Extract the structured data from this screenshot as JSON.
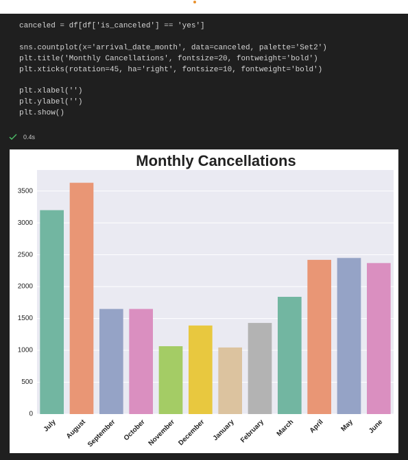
{
  "code": {
    "lines": [
      "canceled = df[df['is_canceled'] == 'yes']",
      "sns.countplot(x='arrival_date_month', data=canceled, palette='Set2')",
      "plt.title('Monthly Cancellations', fontsize=20, fontweight='bold')",
      "plt.xticks(rotation=45, ha='right', fontsize=10, fontweight='bold')",
      "plt.xlabel('')",
      "plt.ylabel('')",
      "plt.show()"
    ],
    "time": "0.4s"
  },
  "chart_data": {
    "type": "bar",
    "title": "Monthly Cancellations",
    "categories": [
      "July",
      "August",
      "September",
      "October",
      "November",
      "December",
      "January",
      "February",
      "March",
      "April",
      "May",
      "June"
    ],
    "values": [
      3200,
      3630,
      1650,
      1650,
      1065,
      1390,
      1045,
      1430,
      1840,
      2420,
      2450,
      2370
    ],
    "colors": [
      "#72b6a1",
      "#e99675",
      "#95a3c6",
      "#da8fc0",
      "#a4cc65",
      "#e8c83f",
      "#dcc39f",
      "#b3b3b3",
      "#72b6a1",
      "#e99675",
      "#95a3c6",
      "#da8fc0"
    ],
    "ylim": [
      0,
      3830
    ],
    "yticks": [
      0,
      500,
      1000,
      1500,
      2000,
      2500,
      3000,
      3500
    ],
    "grid": true
  }
}
